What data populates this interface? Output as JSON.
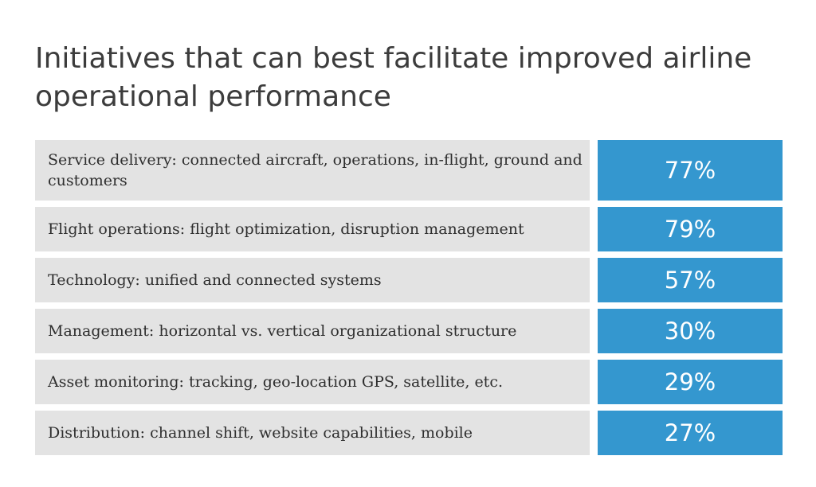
{
  "chart_data": {
    "type": "table",
    "title": "Initiatives that can best facilitate improved airline operational performance",
    "categories": [
      "Service delivery: connected aircraft, operations, in-flight, ground and customers",
      "Flight operations: flight optimization, disruption management",
      "Technology: unified and connected systems",
      "Management: horizontal vs. vertical organizational structure",
      "Asset monitoring: tracking, geo-location GPS, satellite, etc.",
      "Distribution: channel shift, website capabilities, mobile"
    ],
    "values": [
      77,
      79,
      57,
      30,
      29,
      27
    ],
    "value_labels": [
      "77%",
      "79%",
      "57%",
      "30%",
      "29%",
      "27%"
    ],
    "colors": {
      "label_background": "#e3e3e3",
      "value_background": "#3497cf",
      "value_text": "#ffffff",
      "title_text": "#3c3c3c"
    }
  }
}
